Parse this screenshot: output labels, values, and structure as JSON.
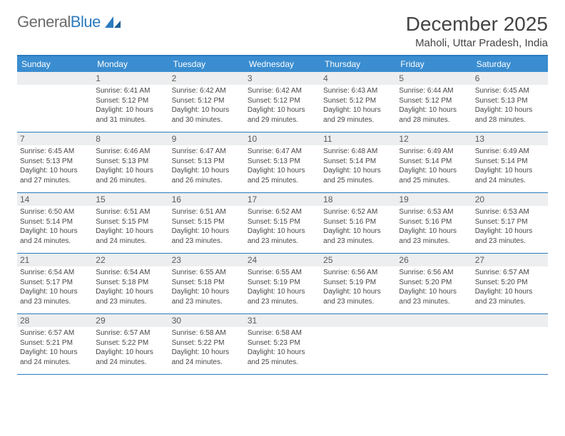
{
  "brand": {
    "part1": "General",
    "part2": "Blue"
  },
  "title": "December 2025",
  "location": "Maholi, Uttar Pradesh, India",
  "colors": {
    "header_bg": "#3a8dd0",
    "border": "#2b7bbf",
    "daynum_bg": "#eceeef",
    "text": "#474747"
  },
  "day_names": [
    "Sunday",
    "Monday",
    "Tuesday",
    "Wednesday",
    "Thursday",
    "Friday",
    "Saturday"
  ],
  "weeks": [
    [
      {
        "n": "",
        "sr": "",
        "ss": "",
        "dl": ""
      },
      {
        "n": "1",
        "sr": "6:41 AM",
        "ss": "5:12 PM",
        "dl": "10 hours and 31 minutes."
      },
      {
        "n": "2",
        "sr": "6:42 AM",
        "ss": "5:12 PM",
        "dl": "10 hours and 30 minutes."
      },
      {
        "n": "3",
        "sr": "6:42 AM",
        "ss": "5:12 PM",
        "dl": "10 hours and 29 minutes."
      },
      {
        "n": "4",
        "sr": "6:43 AM",
        "ss": "5:12 PM",
        "dl": "10 hours and 29 minutes."
      },
      {
        "n": "5",
        "sr": "6:44 AM",
        "ss": "5:12 PM",
        "dl": "10 hours and 28 minutes."
      },
      {
        "n": "6",
        "sr": "6:45 AM",
        "ss": "5:13 PM",
        "dl": "10 hours and 28 minutes."
      }
    ],
    [
      {
        "n": "7",
        "sr": "6:45 AM",
        "ss": "5:13 PM",
        "dl": "10 hours and 27 minutes."
      },
      {
        "n": "8",
        "sr": "6:46 AM",
        "ss": "5:13 PM",
        "dl": "10 hours and 26 minutes."
      },
      {
        "n": "9",
        "sr": "6:47 AM",
        "ss": "5:13 PM",
        "dl": "10 hours and 26 minutes."
      },
      {
        "n": "10",
        "sr": "6:47 AM",
        "ss": "5:13 PM",
        "dl": "10 hours and 25 minutes."
      },
      {
        "n": "11",
        "sr": "6:48 AM",
        "ss": "5:14 PM",
        "dl": "10 hours and 25 minutes."
      },
      {
        "n": "12",
        "sr": "6:49 AM",
        "ss": "5:14 PM",
        "dl": "10 hours and 25 minutes."
      },
      {
        "n": "13",
        "sr": "6:49 AM",
        "ss": "5:14 PM",
        "dl": "10 hours and 24 minutes."
      }
    ],
    [
      {
        "n": "14",
        "sr": "6:50 AM",
        "ss": "5:14 PM",
        "dl": "10 hours and 24 minutes."
      },
      {
        "n": "15",
        "sr": "6:51 AM",
        "ss": "5:15 PM",
        "dl": "10 hours and 24 minutes."
      },
      {
        "n": "16",
        "sr": "6:51 AM",
        "ss": "5:15 PM",
        "dl": "10 hours and 23 minutes."
      },
      {
        "n": "17",
        "sr": "6:52 AM",
        "ss": "5:15 PM",
        "dl": "10 hours and 23 minutes."
      },
      {
        "n": "18",
        "sr": "6:52 AM",
        "ss": "5:16 PM",
        "dl": "10 hours and 23 minutes."
      },
      {
        "n": "19",
        "sr": "6:53 AM",
        "ss": "5:16 PM",
        "dl": "10 hours and 23 minutes."
      },
      {
        "n": "20",
        "sr": "6:53 AM",
        "ss": "5:17 PM",
        "dl": "10 hours and 23 minutes."
      }
    ],
    [
      {
        "n": "21",
        "sr": "6:54 AM",
        "ss": "5:17 PM",
        "dl": "10 hours and 23 minutes."
      },
      {
        "n": "22",
        "sr": "6:54 AM",
        "ss": "5:18 PM",
        "dl": "10 hours and 23 minutes."
      },
      {
        "n": "23",
        "sr": "6:55 AM",
        "ss": "5:18 PM",
        "dl": "10 hours and 23 minutes."
      },
      {
        "n": "24",
        "sr": "6:55 AM",
        "ss": "5:19 PM",
        "dl": "10 hours and 23 minutes."
      },
      {
        "n": "25",
        "sr": "6:56 AM",
        "ss": "5:19 PM",
        "dl": "10 hours and 23 minutes."
      },
      {
        "n": "26",
        "sr": "6:56 AM",
        "ss": "5:20 PM",
        "dl": "10 hours and 23 minutes."
      },
      {
        "n": "27",
        "sr": "6:57 AM",
        "ss": "5:20 PM",
        "dl": "10 hours and 23 minutes."
      }
    ],
    [
      {
        "n": "28",
        "sr": "6:57 AM",
        "ss": "5:21 PM",
        "dl": "10 hours and 24 minutes."
      },
      {
        "n": "29",
        "sr": "6:57 AM",
        "ss": "5:22 PM",
        "dl": "10 hours and 24 minutes."
      },
      {
        "n": "30",
        "sr": "6:58 AM",
        "ss": "5:22 PM",
        "dl": "10 hours and 24 minutes."
      },
      {
        "n": "31",
        "sr": "6:58 AM",
        "ss": "5:23 PM",
        "dl": "10 hours and 25 minutes."
      },
      {
        "n": "",
        "sr": "",
        "ss": "",
        "dl": ""
      },
      {
        "n": "",
        "sr": "",
        "ss": "",
        "dl": ""
      },
      {
        "n": "",
        "sr": "",
        "ss": "",
        "dl": ""
      }
    ]
  ],
  "labels": {
    "sunrise": "Sunrise: ",
    "sunset": "Sunset: ",
    "daylight": "Daylight: "
  }
}
